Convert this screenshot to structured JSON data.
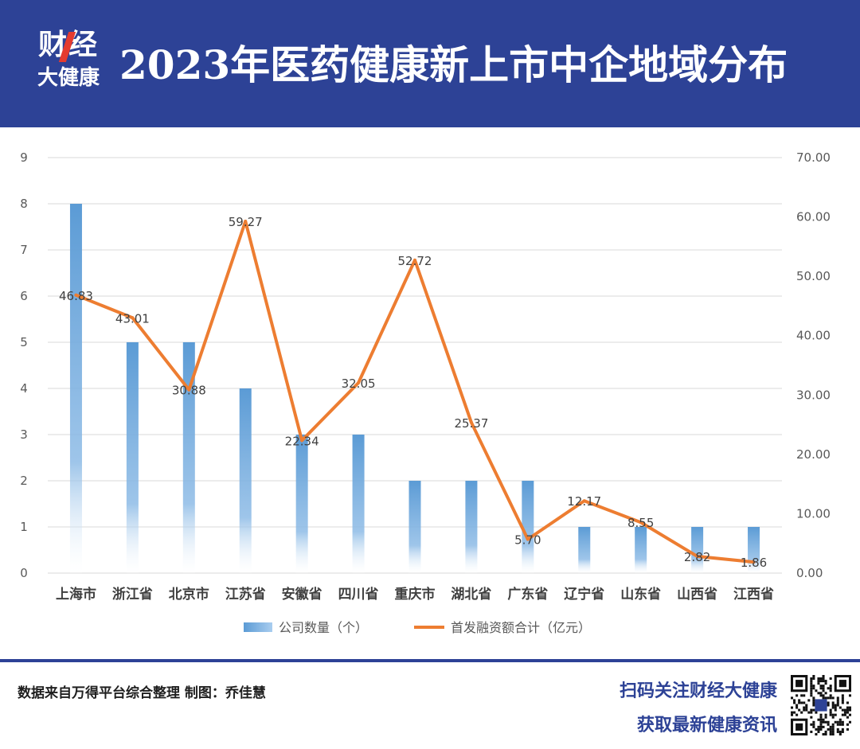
{
  "header": {
    "logo_top": "财经",
    "logo_bottom": "大健康",
    "title": "2023年医药健康新上市中企地域分布"
  },
  "colors": {
    "header_bg": "#2d4296",
    "bar": "#5b9bd5",
    "line": "#ed7d31",
    "logo_accent": "#e43b2f"
  },
  "chart_data": {
    "type": "bar",
    "categories": [
      "上海市",
      "浙江省",
      "北京市",
      "江苏省",
      "安徽省",
      "四川省",
      "重庆市",
      "湖北省",
      "广东省",
      "辽宁省",
      "山东省",
      "山西省",
      "江西省"
    ],
    "series": [
      {
        "name": "公司数量（个）",
        "type": "bar",
        "axis": "left",
        "values": [
          8,
          5,
          5,
          4,
          3,
          3,
          2,
          2,
          2,
          1,
          1,
          1,
          1
        ]
      },
      {
        "name": "首发融资额合计（亿元）",
        "type": "line",
        "axis": "right",
        "values": [
          46.83,
          43.01,
          30.88,
          59.27,
          22.34,
          32.05,
          52.72,
          25.37,
          5.7,
          12.17,
          8.55,
          2.82,
          1.86
        ],
        "labels": [
          "46.83",
          "43.01",
          "30.88",
          "59.27",
          "22.34",
          "32.05",
          "52.72",
          "25.37",
          "5.70",
          "12.17",
          "8.55",
          "2.82",
          "1.86"
        ]
      }
    ],
    "y_left": {
      "min": 0,
      "max": 9,
      "ticks": [
        "0",
        "1",
        "2",
        "3",
        "4",
        "5",
        "6",
        "7",
        "8",
        "9"
      ]
    },
    "y_right": {
      "min": 0,
      "max": 70,
      "ticks": [
        "0.00",
        "10.00",
        "20.00",
        "30.00",
        "40.00",
        "50.00",
        "60.00",
        "70.00"
      ]
    },
    "grid": true,
    "legend_position": "bottom"
  },
  "footer": {
    "source": "数据来自万得平台综合整理   制图：乔佳慧",
    "promo_line1": "扫码关注财经大健康",
    "promo_line2": "获取最新健康资讯"
  }
}
